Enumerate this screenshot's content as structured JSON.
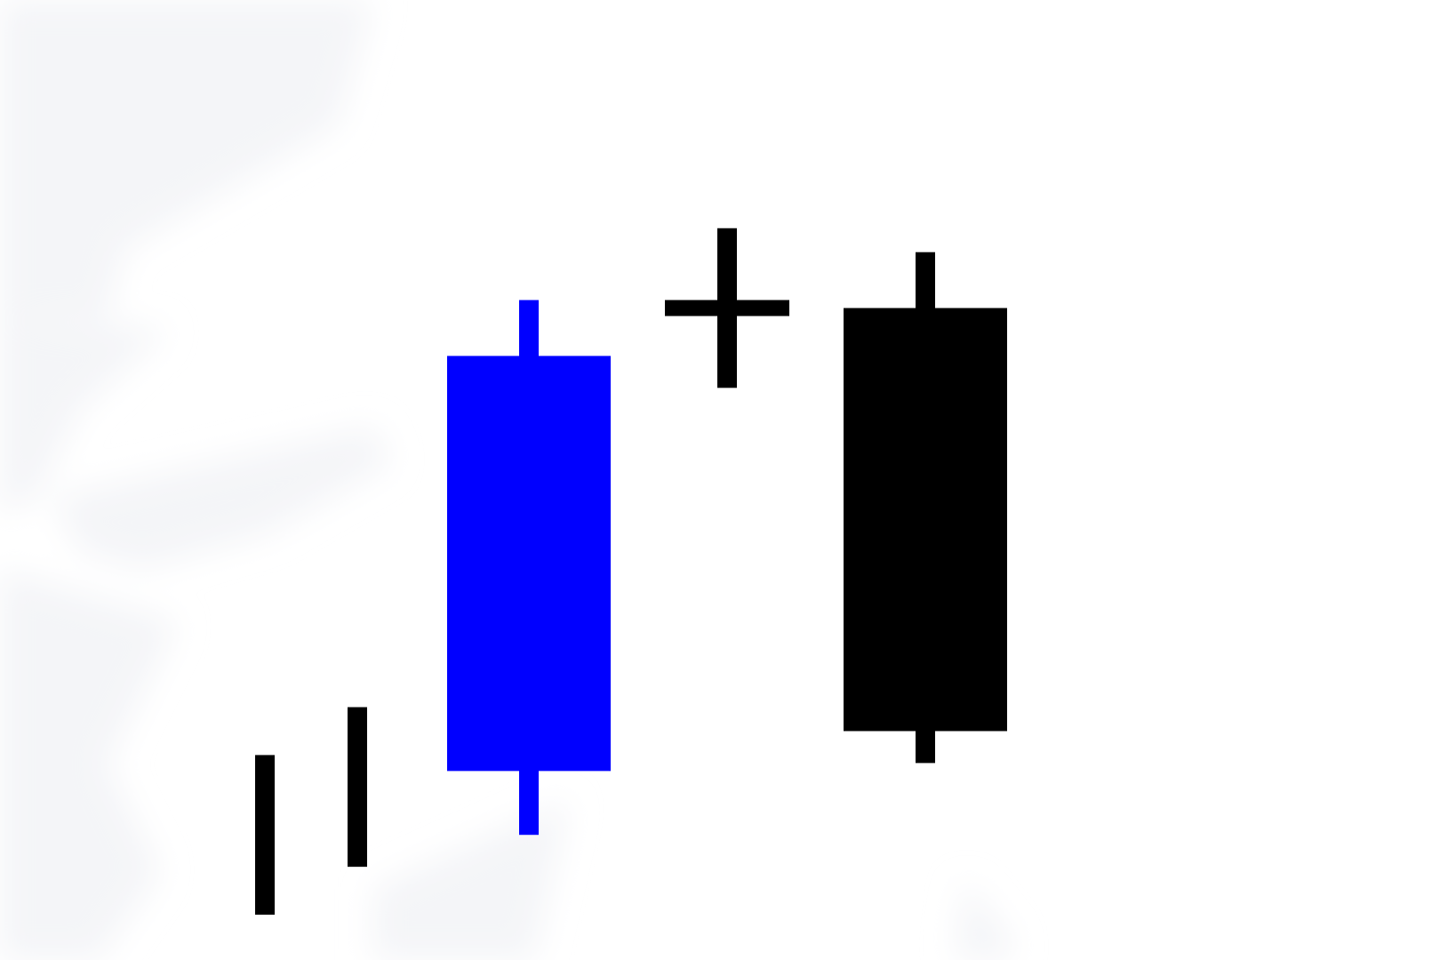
{
  "chart_data": {
    "type": "candlestick",
    "title": "",
    "xlabel": "",
    "ylabel": "",
    "axes_visible": false,
    "grid": false,
    "legend": "none",
    "ylim": [
      0,
      100
    ],
    "background_color": "#ffffff",
    "watermark_color": "#f4f5f8",
    "candles": [
      {
        "open": 21,
        "high": 21,
        "low": 1,
        "close": 1,
        "color": "#000000"
      },
      {
        "open": 27,
        "high": 27,
        "low": 7,
        "close": 7,
        "color": "#000000"
      },
      {
        "open": 19,
        "high": 78,
        "low": 11,
        "close": 71,
        "color": "#0000ff"
      },
      {
        "open": 77,
        "high": 87,
        "low": 67,
        "close": 77,
        "color": "#000000"
      },
      {
        "open": 77,
        "high": 84,
        "low": 20,
        "close": 24,
        "color": "#000000"
      }
    ]
  }
}
